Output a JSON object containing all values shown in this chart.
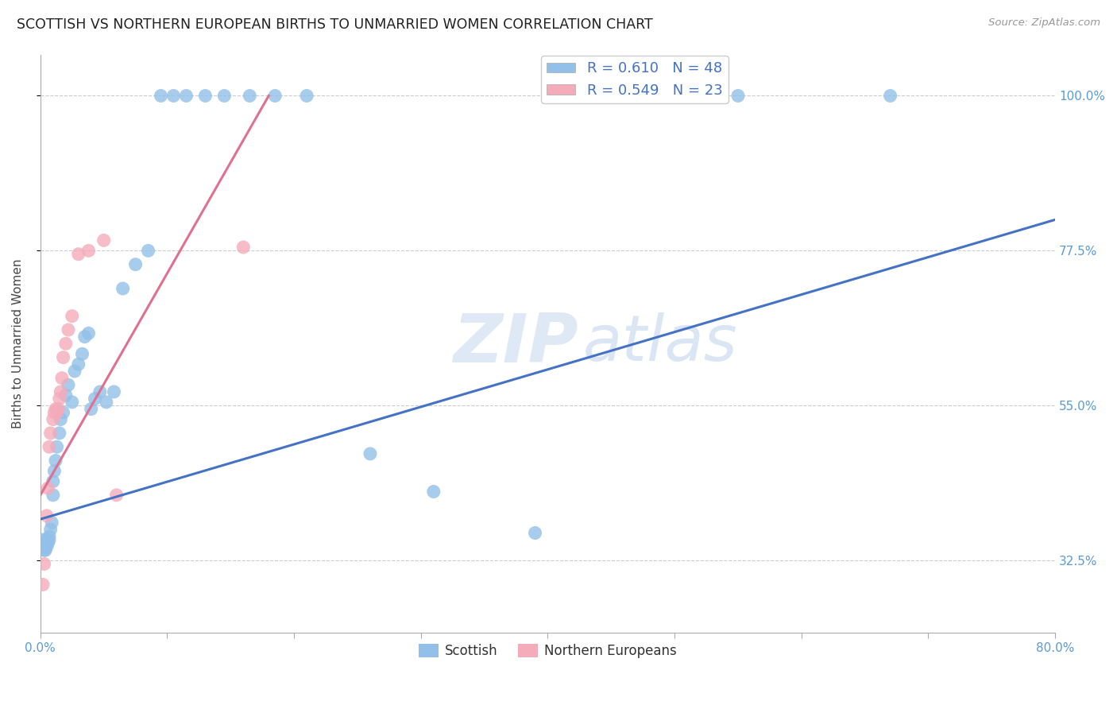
{
  "title": "SCOTTISH VS NORTHERN EUROPEAN BIRTHS TO UNMARRIED WOMEN CORRELATION CHART",
  "source": "Source: ZipAtlas.com",
  "ylabel": "Births to Unmarried Women",
  "xlim": [
    0.0,
    0.8
  ],
  "ylim": [
    0.22,
    1.06
  ],
  "xticks": [
    0.0,
    0.1,
    0.2,
    0.3,
    0.4,
    0.5,
    0.6,
    0.7,
    0.8
  ],
  "xticklabels": [
    "0.0%",
    "",
    "",
    "",
    "",
    "",
    "",
    "",
    "80.0%"
  ],
  "yticks": [
    0.325,
    0.55,
    0.775,
    1.0
  ],
  "yticklabels": [
    "32.5%",
    "55.0%",
    "77.5%",
    "100.0%"
  ],
  "watermark_zip": "ZIP",
  "watermark_atlas": "atlas",
  "legend_blue_label": "R = 0.610   N = 48",
  "legend_pink_label": "R = 0.549   N = 23",
  "blue_color": "#92C0E8",
  "pink_color": "#F4ABBA",
  "blue_line_color": "#4472C4",
  "pink_line_color": "#E07090",
  "scatter_size": 150,
  "scottish_x": [
    0.002,
    0.003,
    0.003,
    0.004,
    0.005,
    0.005,
    0.006,
    0.007,
    0.007,
    0.008,
    0.009,
    0.01,
    0.01,
    0.011,
    0.012,
    0.013,
    0.015,
    0.016,
    0.018,
    0.02,
    0.022,
    0.025,
    0.027,
    0.03,
    0.033,
    0.035,
    0.038,
    0.04,
    0.043,
    0.047,
    0.052,
    0.058,
    0.065,
    0.075,
    0.085,
    0.095,
    0.105,
    0.115,
    0.13,
    0.145,
    0.165,
    0.185,
    0.21,
    0.26,
    0.31,
    0.39,
    0.55,
    0.67
  ],
  "scottish_y": [
    0.355,
    0.34,
    0.345,
    0.34,
    0.345,
    0.355,
    0.35,
    0.355,
    0.36,
    0.37,
    0.38,
    0.42,
    0.44,
    0.455,
    0.47,
    0.49,
    0.51,
    0.53,
    0.54,
    0.565,
    0.58,
    0.555,
    0.6,
    0.61,
    0.625,
    0.65,
    0.655,
    0.545,
    0.56,
    0.57,
    0.555,
    0.57,
    0.72,
    0.755,
    0.775,
    1.0,
    1.0,
    1.0,
    1.0,
    1.0,
    1.0,
    1.0,
    1.0,
    0.48,
    0.425,
    0.365,
    1.0,
    1.0
  ],
  "northern_x": [
    0.002,
    0.003,
    0.005,
    0.006,
    0.007,
    0.008,
    0.01,
    0.011,
    0.012,
    0.013,
    0.014,
    0.015,
    0.016,
    0.017,
    0.018,
    0.02,
    0.022,
    0.025,
    0.03,
    0.038,
    0.05,
    0.06,
    0.16
  ],
  "northern_y": [
    0.29,
    0.32,
    0.39,
    0.43,
    0.49,
    0.51,
    0.53,
    0.54,
    0.545,
    0.54,
    0.545,
    0.56,
    0.57,
    0.59,
    0.62,
    0.64,
    0.66,
    0.68,
    0.77,
    0.775,
    0.79,
    0.42,
    0.78
  ],
  "blue_trend_x0": 0.0,
  "blue_trend_y0": 0.385,
  "blue_trend_x1": 0.8,
  "blue_trend_y1": 0.82,
  "pink_trend_x0": 0.0,
  "pink_trend_y0": 0.42,
  "pink_trend_x1": 0.18,
  "pink_trend_y1": 1.0
}
